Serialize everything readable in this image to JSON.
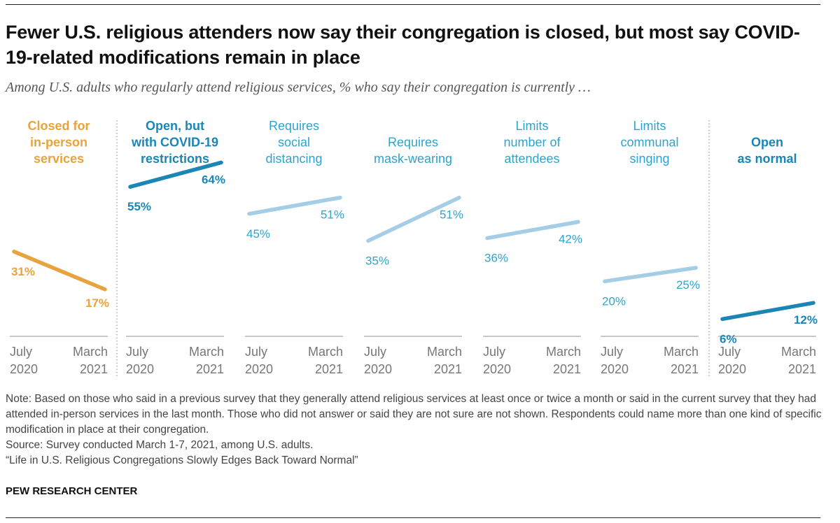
{
  "title": "Fewer U.S. religious attenders now say their congregation is closed, but most say COVID-19-related modifications remain in place",
  "subtitle": "Among U.S. adults who regularly attend religious services, % who say their congregation is currently …",
  "chart_data": {
    "type": "line",
    "x": [
      "July 2020",
      "March 2021"
    ],
    "x_tick_lines": [
      [
        "July",
        "2020"
      ],
      [
        "March",
        "2021"
      ]
    ],
    "ylim": [
      0,
      100
    ],
    "grid": false,
    "panels": [
      {
        "label_lines": [
          "Closed for",
          "in-person",
          "services"
        ],
        "values": [
          31,
          17
        ],
        "value_labels": [
          "31%",
          "17%"
        ],
        "color": "#E8A33C",
        "bold": true
      },
      {
        "label_lines": [
          "Open, but",
          "with COVID-19",
          "restrictions"
        ],
        "values": [
          55,
          64
        ],
        "value_labels": [
          "55%",
          "64%"
        ],
        "color": "#1B86B5",
        "bold": true
      },
      {
        "label_lines": [
          "Requires",
          "social",
          "distancing"
        ],
        "values": [
          45,
          51
        ],
        "value_labels": [
          "45%",
          "51%"
        ],
        "color": "#A4CDE6",
        "label_color": "#2FA3CC",
        "bold": false
      },
      {
        "label_lines": [
          "Requires",
          "mask-wearing"
        ],
        "values": [
          35,
          51
        ],
        "value_labels": [
          "35%",
          "51%"
        ],
        "color": "#A4CDE6",
        "label_color": "#2FA3CC",
        "bold": false
      },
      {
        "label_lines": [
          "Limits",
          "number of",
          "attendees"
        ],
        "values": [
          36,
          42
        ],
        "value_labels": [
          "36%",
          "42%"
        ],
        "color": "#A4CDE6",
        "label_color": "#2FA3CC",
        "bold": false
      },
      {
        "label_lines": [
          "Limits",
          "communal",
          "singing"
        ],
        "values": [
          20,
          25
        ],
        "value_labels": [
          "20%",
          "25%"
        ],
        "color": "#A4CDE6",
        "label_color": "#2FA3CC",
        "bold": false
      },
      {
        "label_lines": [
          "Open",
          "as normal"
        ],
        "values": [
          6,
          12
        ],
        "value_labels": [
          "6%",
          "12%"
        ],
        "color": "#1B86B5",
        "bold": true
      }
    ]
  },
  "notes": {
    "note": "Note: Based on those who said in a previous survey that they generally attend religious services at least once or twice a month or said in the current survey that they had attended in-person services in the last month. Those who did not answer or said they are not sure are not shown. Respondents could name more than one kind of specific modification in place at their congregation.",
    "source": "Source: Survey conducted March 1-7, 2021, among U.S. adults.",
    "report": "“Life in U.S. Religious Congregations Slowly Edges Back Toward Normal”"
  },
  "org": "PEW RESEARCH CENTER"
}
